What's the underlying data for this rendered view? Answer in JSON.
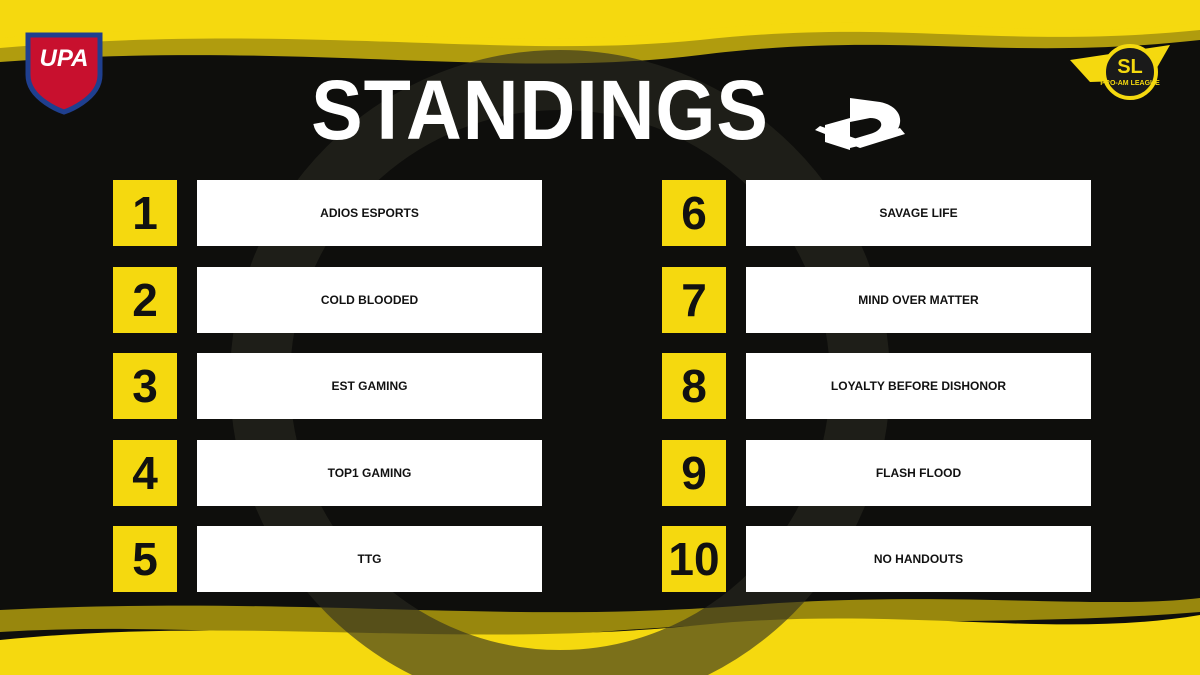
{
  "header": {
    "title": "STANDINGS",
    "left_logo": "UPA",
    "right_logo": "SL",
    "right_logo_subtitle": "PRO-AM LEAGUE"
  },
  "standings": [
    {
      "rank": 1,
      "team": "ADIOS ESPORTS"
    },
    {
      "rank": 2,
      "team": "COLD BLOODED"
    },
    {
      "rank": 3,
      "team": "EST GAMING"
    },
    {
      "rank": 4,
      "team": "TOP1 GAMING"
    },
    {
      "rank": 5,
      "team": "TTG"
    },
    {
      "rank": 6,
      "team": "SAVAGE LIFE"
    },
    {
      "rank": 7,
      "team": "MIND OVER MATTER"
    },
    {
      "rank": 8,
      "team": "LOYALTY BEFORE DISHONOR"
    },
    {
      "rank": 9,
      "team": "FLASH FLOOD"
    },
    {
      "rank": 10,
      "team": "NO HANDOUTS"
    }
  ]
}
